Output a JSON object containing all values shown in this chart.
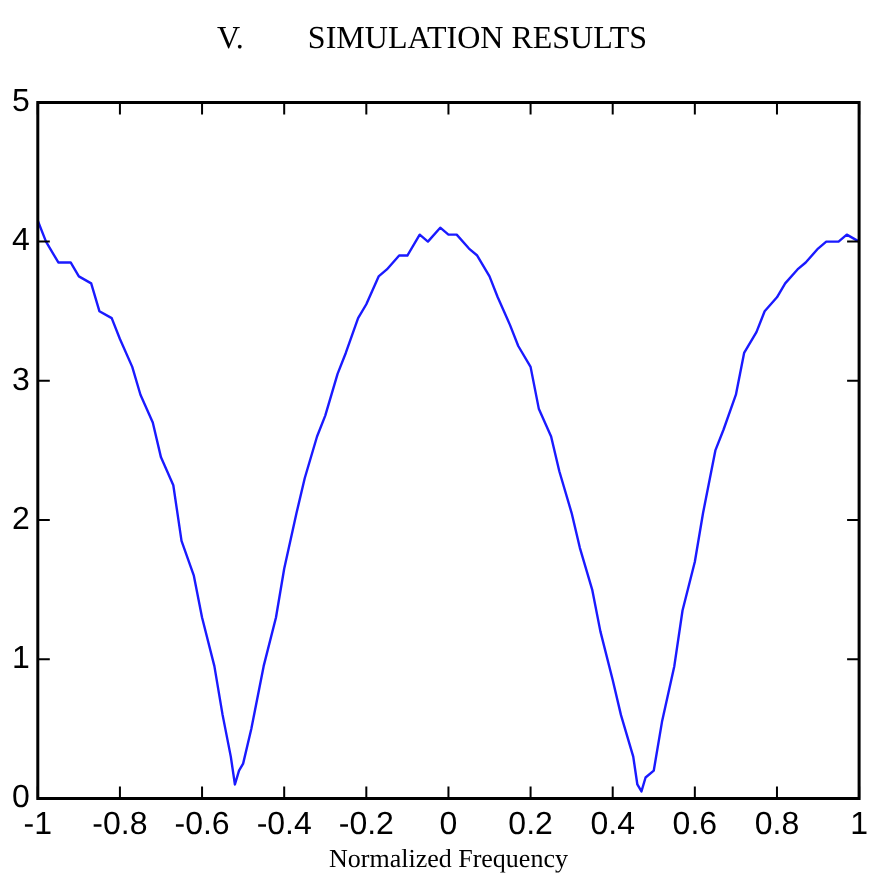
{
  "chart_data": {
    "type": "line",
    "title": "V.        SIMULATION RESULTS",
    "xlabel": "Normalized Frequency",
    "x": [
      -1,
      -0.98,
      -0.95,
      -0.92,
      -0.9,
      -0.87,
      -0.85,
      -0.82,
      -0.8,
      -0.77,
      -0.75,
      -0.72,
      -0.7,
      -0.67,
      -0.65,
      -0.62,
      -0.6,
      -0.57,
      -0.55,
      -0.53,
      -0.52,
      -0.51,
      -0.5,
      -0.48,
      -0.45,
      -0.42,
      -0.4,
      -0.37,
      -0.35,
      -0.32,
      -0.3,
      -0.27,
      -0.25,
      -0.22,
      -0.2,
      -0.17,
      -0.15,
      -0.12,
      -0.1,
      -0.07,
      -0.05,
      -0.02,
      0,
      0.02,
      0.05,
      0.07,
      0.1,
      0.12,
      0.15,
      0.17,
      0.2,
      0.22,
      0.25,
      0.27,
      0.3,
      0.32,
      0.35,
      0.37,
      0.4,
      0.42,
      0.45,
      0.46,
      0.47,
      0.48,
      0.5,
      0.52,
      0.55,
      0.57,
      0.6,
      0.62,
      0.65,
      0.67,
      0.7,
      0.72,
      0.75,
      0.77,
      0.8,
      0.82,
      0.85,
      0.87,
      0.9,
      0.92,
      0.95,
      0.97,
      1
    ],
    "series": [
      {
        "color": "#1a1aff",
        "values": [
          4.15,
          4.0,
          3.85,
          3.85,
          3.75,
          3.7,
          3.5,
          3.45,
          3.3,
          3.1,
          2.9,
          2.7,
          2.45,
          2.25,
          1.85,
          1.6,
          1.3,
          0.95,
          0.6,
          0.3,
          0.1,
          0.2,
          0.25,
          0.5,
          0.95,
          1.3,
          1.65,
          2.05,
          2.3,
          2.6,
          2.75,
          3.05,
          3.2,
          3.45,
          3.55,
          3.75,
          3.8,
          3.9,
          3.9,
          4.05,
          4.0,
          4.1,
          4.05,
          4.05,
          3.95,
          3.9,
          3.75,
          3.6,
          3.4,
          3.25,
          3.1,
          2.8,
          2.6,
          2.35,
          2.05,
          1.8,
          1.5,
          1.2,
          0.85,
          0.6,
          0.3,
          0.1,
          0.05,
          0.15,
          0.2,
          0.55,
          0.95,
          1.35,
          1.7,
          2.05,
          2.5,
          2.65,
          2.9,
          3.2,
          3.35,
          3.5,
          3.6,
          3.7,
          3.8,
          3.85,
          3.95,
          4.0,
          4.0,
          4.05,
          4.0
        ]
      }
    ],
    "xlim": [
      -1,
      1
    ],
    "xticks": [
      -1,
      -0.8,
      -0.6,
      -0.4,
      -0.2,
      0,
      0.2,
      0.4,
      0.6,
      0.8,
      1
    ],
    "ylim": [
      0,
      5
    ],
    "yticks": [
      0,
      1,
      2,
      3,
      4,
      5
    ],
    "grid": false,
    "legend": false,
    "marker": "none",
    "line_style": "solid"
  }
}
